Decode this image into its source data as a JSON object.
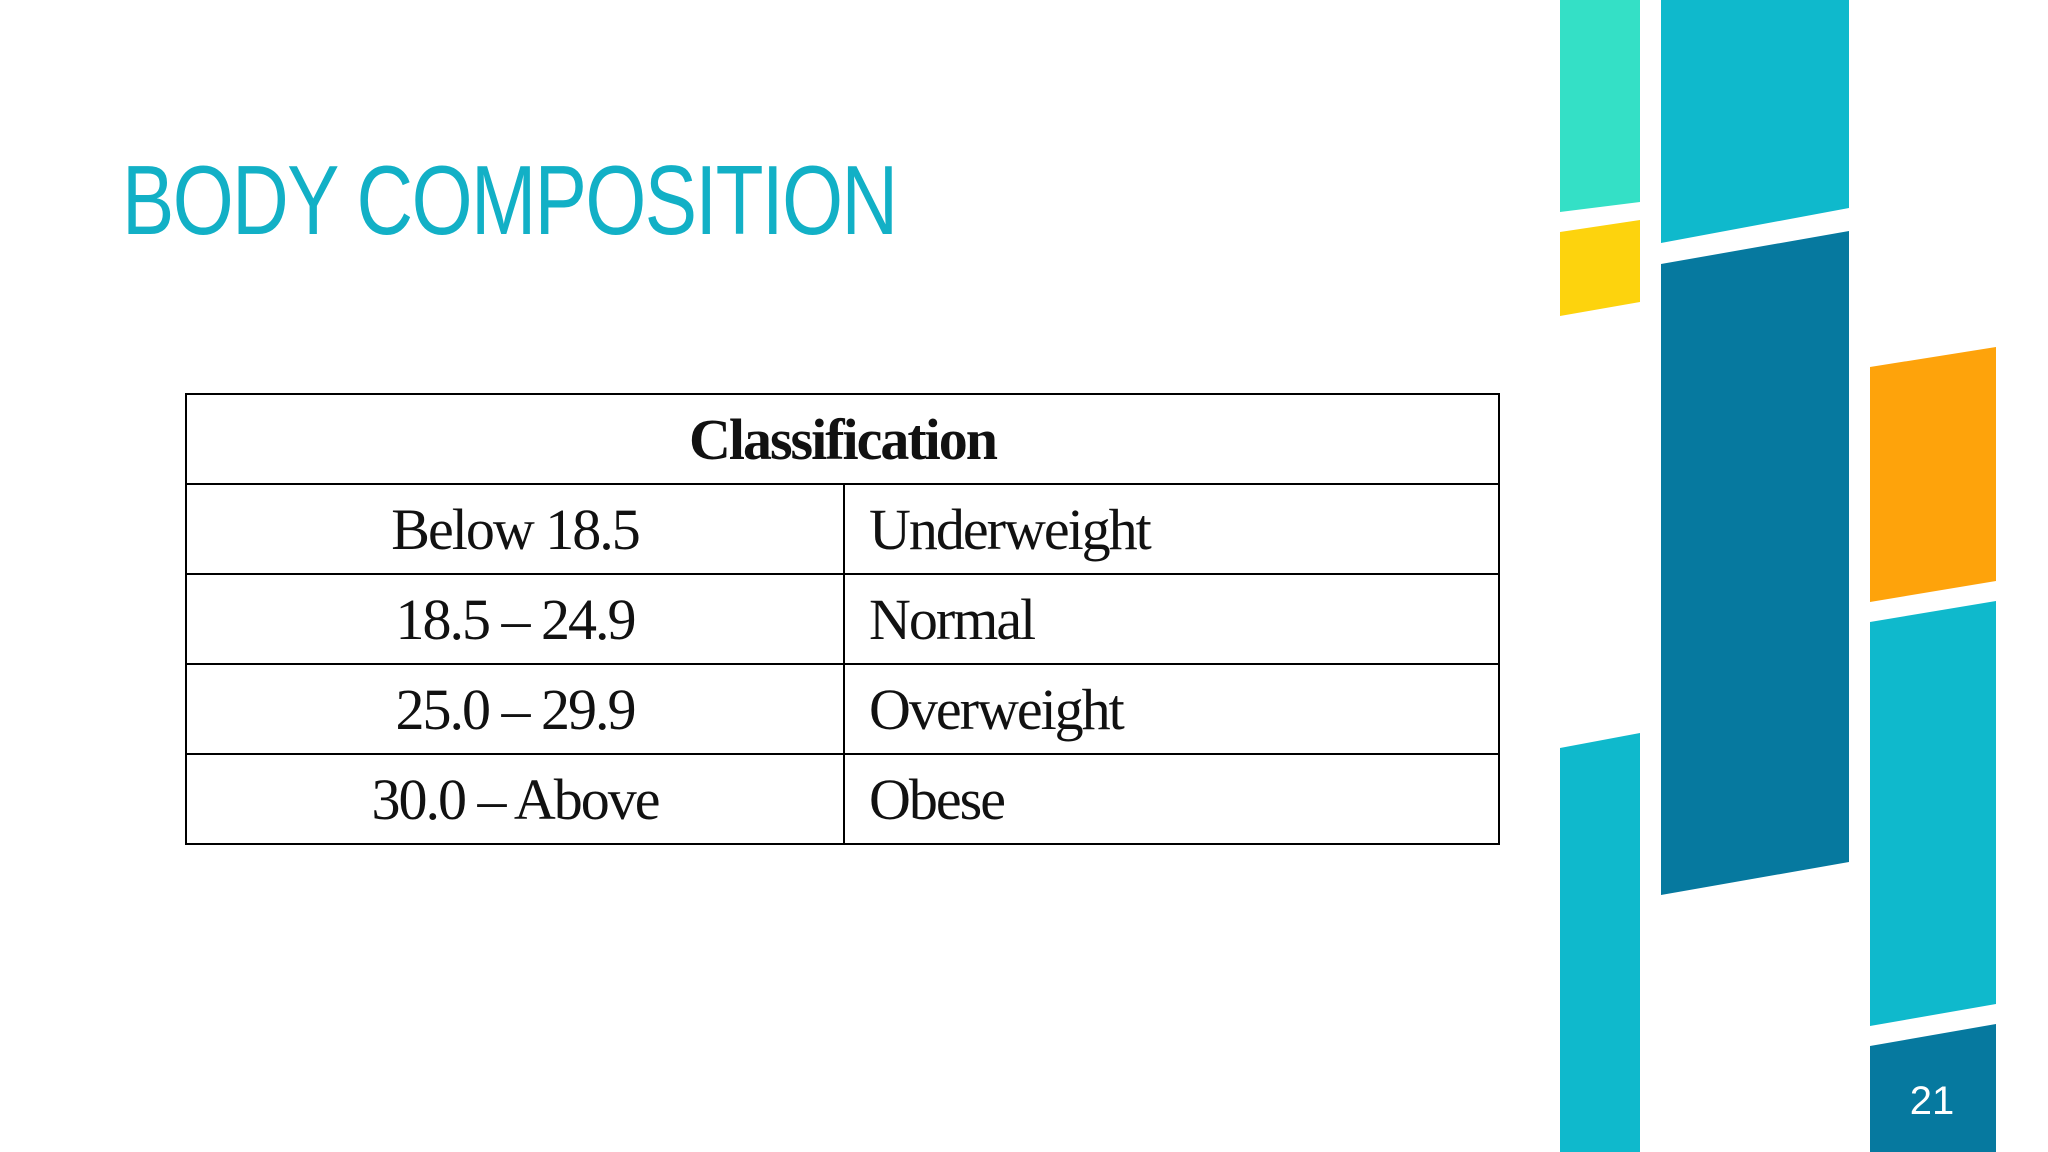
{
  "slide": {
    "title": "BODY COMPOSITION",
    "page_number": "21"
  },
  "table": {
    "header": "Classification",
    "rows": [
      {
        "range": "Below 18.5",
        "label": "Underweight"
      },
      {
        "range": "18.5 – 24.9",
        "label": "Normal"
      },
      {
        "range": "25.0 – 29.9",
        "label": "Overweight"
      },
      {
        "range": "30.0 – Above",
        "label": "Obese"
      }
    ]
  },
  "colors": {
    "title": "#12b0c6",
    "teal_light": "#34e0c6",
    "yellow": "#fdd30d",
    "cyan": "#0fb9cc",
    "dark_teal": "#06799f",
    "orange": "#fea30b"
  }
}
